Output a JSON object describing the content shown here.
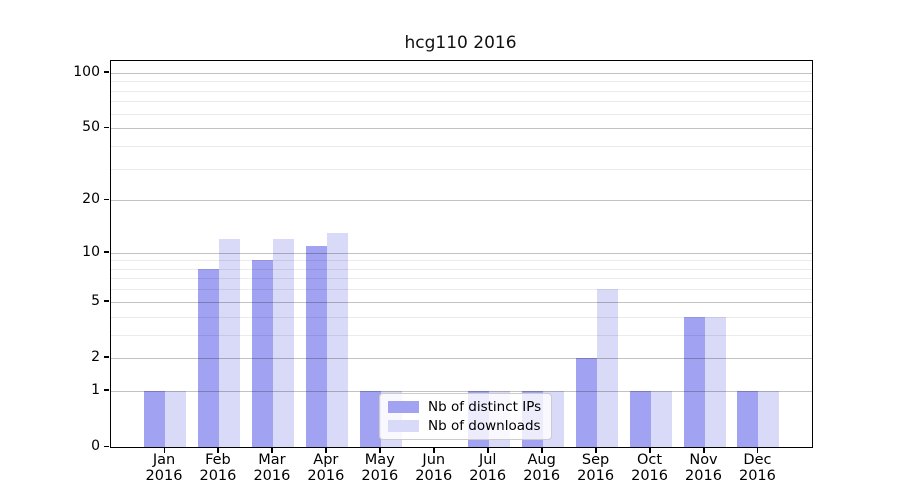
{
  "title": "hcg110 2016",
  "colors": {
    "distinct_ips": "#a2a2f2",
    "downloads": "#d9d9f8",
    "spine": "#000000",
    "grid_major": "rgba(0,0,0,0.24)",
    "grid_minor": "rgba(0,0,0,0.08)"
  },
  "legend": {
    "items": [
      {
        "label": "Nb of distinct IPs",
        "series_index": 0
      },
      {
        "label": "Nb of downloads",
        "series_index": 1
      }
    ],
    "position": "lower center"
  },
  "y_axis": {
    "scale": "log10(1+y)",
    "major_ticks": [
      0,
      1,
      2,
      5,
      10,
      20,
      50,
      100
    ],
    "minor_ticks": [
      3,
      4,
      6,
      7,
      8,
      9,
      30,
      40,
      60,
      70,
      80,
      90
    ],
    "max": 116
  },
  "x_axis": {
    "year": "2016",
    "months": [
      "Jan",
      "Feb",
      "Mar",
      "Apr",
      "May",
      "Jun",
      "Jul",
      "Aug",
      "Sep",
      "Oct",
      "Nov",
      "Dec"
    ]
  },
  "chart_data": {
    "type": "bar",
    "title": "hcg110 2016",
    "categories": [
      "Jan 2016",
      "Feb 2016",
      "Mar 2016",
      "Apr 2016",
      "May 2016",
      "Jun 2016",
      "Jul 2016",
      "Aug 2016",
      "Sep 2016",
      "Oct 2016",
      "Nov 2016",
      "Dec 2016"
    ],
    "series": [
      {
        "name": "Nb of distinct IPs",
        "color": "#a2a2f2",
        "values": [
          1,
          8,
          9,
          11,
          1,
          0,
          1,
          1,
          2,
          1,
          4,
          1
        ]
      },
      {
        "name": "Nb of downloads",
        "color": "#d9d9f8",
        "values": [
          1,
          12,
          12,
          13,
          1,
          0,
          1,
          1,
          6,
          1,
          4,
          1
        ]
      }
    ],
    "xlabel": "",
    "ylabel": "",
    "ylim": [
      0,
      116
    ],
    "yticks": [
      0,
      1,
      2,
      5,
      10,
      20,
      50,
      100
    ],
    "yscale": "log1p",
    "grid": true,
    "legend_position": "lower center"
  }
}
